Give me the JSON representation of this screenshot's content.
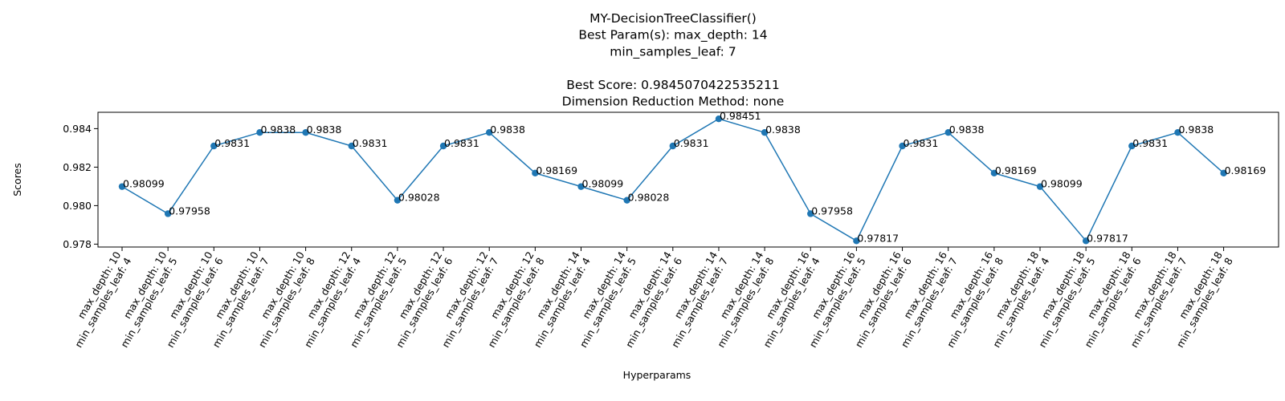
{
  "chart_data": {
    "type": "line",
    "title_lines": [
      "MY-DecisionTreeClassifier()",
      "Best Param(s): max_depth: 14",
      "min_samples_leaf: 7",
      "",
      "Best Score: 0.9845070422535211",
      "Dimension Reduction Method: none"
    ],
    "xlabel": "Hyperparams",
    "ylabel": "Scores",
    "ylim": [
      0.97785,
      0.98485
    ],
    "yticks": [
      0.978,
      0.98,
      0.982,
      0.984
    ],
    "ytick_labels": [
      "0.978",
      "0.980",
      "0.982",
      "0.984"
    ],
    "color": "#1f77b4",
    "grid": false,
    "categories": [
      [
        "max_depth: 10",
        "min_samples_leaf: 4"
      ],
      [
        "max_depth: 10",
        "min_samples_leaf: 5"
      ],
      [
        "max_depth: 10",
        "min_samples_leaf: 6"
      ],
      [
        "max_depth: 10",
        "min_samples_leaf: 7"
      ],
      [
        "max_depth: 10",
        "min_samples_leaf: 8"
      ],
      [
        "max_depth: 12",
        "min_samples_leaf: 4"
      ],
      [
        "max_depth: 12",
        "min_samples_leaf: 5"
      ],
      [
        "max_depth: 12",
        "min_samples_leaf: 6"
      ],
      [
        "max_depth: 12",
        "min_samples_leaf: 7"
      ],
      [
        "max_depth: 12",
        "min_samples_leaf: 8"
      ],
      [
        "max_depth: 14",
        "min_samples_leaf: 4"
      ],
      [
        "max_depth: 14",
        "min_samples_leaf: 5"
      ],
      [
        "max_depth: 14",
        "min_samples_leaf: 6"
      ],
      [
        "max_depth: 14",
        "min_samples_leaf: 7"
      ],
      [
        "max_depth: 14",
        "min_samples_leaf: 8"
      ],
      [
        "max_depth: 16",
        "min_samples_leaf: 4"
      ],
      [
        "max_depth: 16",
        "min_samples_leaf: 5"
      ],
      [
        "max_depth: 16",
        "min_samples_leaf: 6"
      ],
      [
        "max_depth: 16",
        "min_samples_leaf: 7"
      ],
      [
        "max_depth: 16",
        "min_samples_leaf: 8"
      ],
      [
        "max_depth: 18",
        "min_samples_leaf: 4"
      ],
      [
        "max_depth: 18",
        "min_samples_leaf: 5"
      ],
      [
        "max_depth: 18",
        "min_samples_leaf: 6"
      ],
      [
        "max_depth: 18",
        "min_samples_leaf: 7"
      ],
      [
        "max_depth: 18",
        "min_samples_leaf: 8"
      ]
    ],
    "values": [
      0.98099,
      0.97958,
      0.9831,
      0.9838,
      0.9838,
      0.9831,
      0.98028,
      0.9831,
      0.9838,
      0.98169,
      0.98099,
      0.98028,
      0.9831,
      0.98451,
      0.9838,
      0.97958,
      0.97817,
      0.9831,
      0.9838,
      0.98169,
      0.98099,
      0.97817,
      0.9831,
      0.9838,
      0.98169
    ],
    "value_labels": [
      "0.98099",
      "0.97958",
      "0.9831",
      "0.9838",
      "0.9838",
      "0.9831",
      "0.98028",
      "0.9831",
      "0.9838",
      "0.98169",
      "0.98099",
      "0.98028",
      "0.9831",
      "0.98451",
      "0.9838",
      "0.97958",
      "0.97817",
      "0.9831",
      "0.9838",
      "0.98169",
      "0.98099",
      "0.97817",
      "0.9831",
      "0.9838",
      "0.98169"
    ]
  }
}
